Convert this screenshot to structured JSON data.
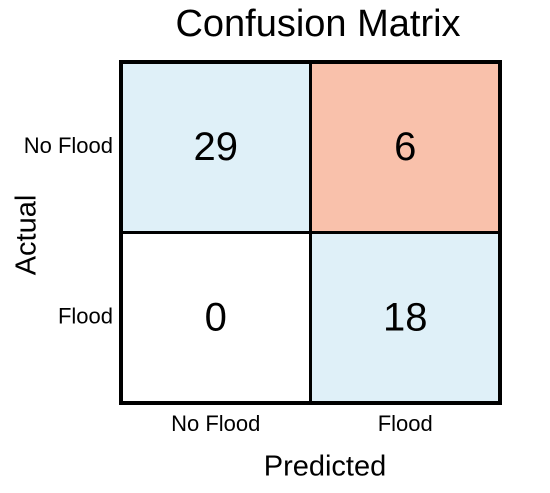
{
  "chart_data": {
    "type": "heatmap",
    "title": "Confusion Matrix",
    "x_label": "Predicted",
    "y_label": "Actual",
    "x_categories": [
      "No Flood",
      "Flood"
    ],
    "y_categories": [
      "No Flood",
      "Flood"
    ],
    "values": [
      [
        29,
        6
      ],
      [
        0,
        18
      ]
    ],
    "colors": [
      [
        "#dff0f8",
        "#f9c1ab"
      ],
      [
        "#ffffff",
        "#dff0f8"
      ]
    ]
  }
}
